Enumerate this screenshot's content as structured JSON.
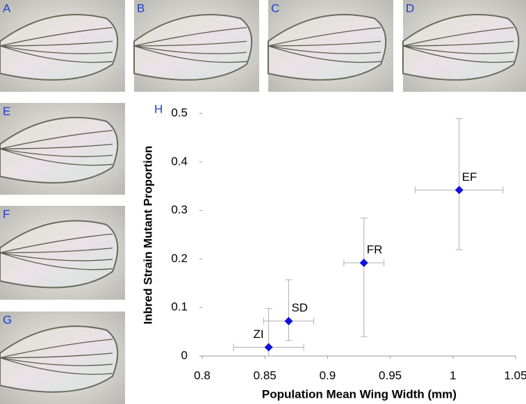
{
  "panels": [
    {
      "label": "A"
    },
    {
      "label": "B"
    },
    {
      "label": "C"
    },
    {
      "label": "D"
    },
    {
      "label": "E"
    },
    {
      "label": "F"
    },
    {
      "label": "G"
    }
  ],
  "chart_data": {
    "type": "scatter",
    "panel_label": "H",
    "x_label": "Population Mean Wing Width (mm)",
    "y_label": "Inbred Strain Mutant Proportion",
    "labels": [
      "ZI",
      "SD",
      "FR",
      "EF"
    ],
    "x": [
      0.853,
      0.869,
      0.929,
      1.005
    ],
    "xerr": [
      0.028,
      0.02,
      0.016,
      0.035
    ],
    "values": [
      0.018,
      0.072,
      0.192,
      0.342
    ],
    "yerr_minus": [
      0.018,
      0.04,
      0.152,
      0.123
    ],
    "yerr_plus": [
      0.08,
      0.085,
      0.092,
      0.147
    ],
    "color": "#1010e0",
    "errorbar_color": "#b0b0b0",
    "xlim": [
      0.8,
      1.05
    ],
    "xticks": [
      0.8,
      0.85,
      0.9,
      0.95,
      1,
      1.05
    ],
    "ylim": [
      0,
      0.5
    ],
    "yticks": [
      0,
      0.1,
      0.2,
      0.3,
      0.4,
      0.5
    ],
    "grid": false
  }
}
